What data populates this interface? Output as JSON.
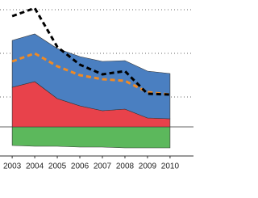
{
  "chart_data": {
    "type": "stacked-area",
    "x": [
      2003,
      2004,
      2005,
      2006,
      2007,
      2008,
      2009,
      2010
    ],
    "xlim": [
      2002.46,
      2011.04
    ],
    "ylim": [
      -36,
      157
    ],
    "yticks": [
      0,
      37,
      91,
      145
    ],
    "grid": true,
    "series": [
      {
        "color": "#5cb85c",
        "values": [
          -23,
          -24,
          -24,
          -25,
          -25,
          -26,
          -26,
          -26
        ]
      },
      {
        "color": "#e8424b",
        "values": [
          49,
          56,
          35,
          26,
          20,
          22,
          11,
          10
        ]
      },
      {
        "color": "#4a7fc1",
        "values": [
          58,
          59,
          62,
          61,
          61,
          60,
          58,
          56
        ]
      }
    ],
    "lines": [
      {
        "color": "#f08a24",
        "values": [
          81,
          91,
          75,
          64,
          59,
          57,
          43,
          40
        ]
      },
      {
        "color": "#000000",
        "values": [
          137,
          147,
          99,
          77,
          65,
          69,
          41,
          40
        ]
      }
    ]
  }
}
